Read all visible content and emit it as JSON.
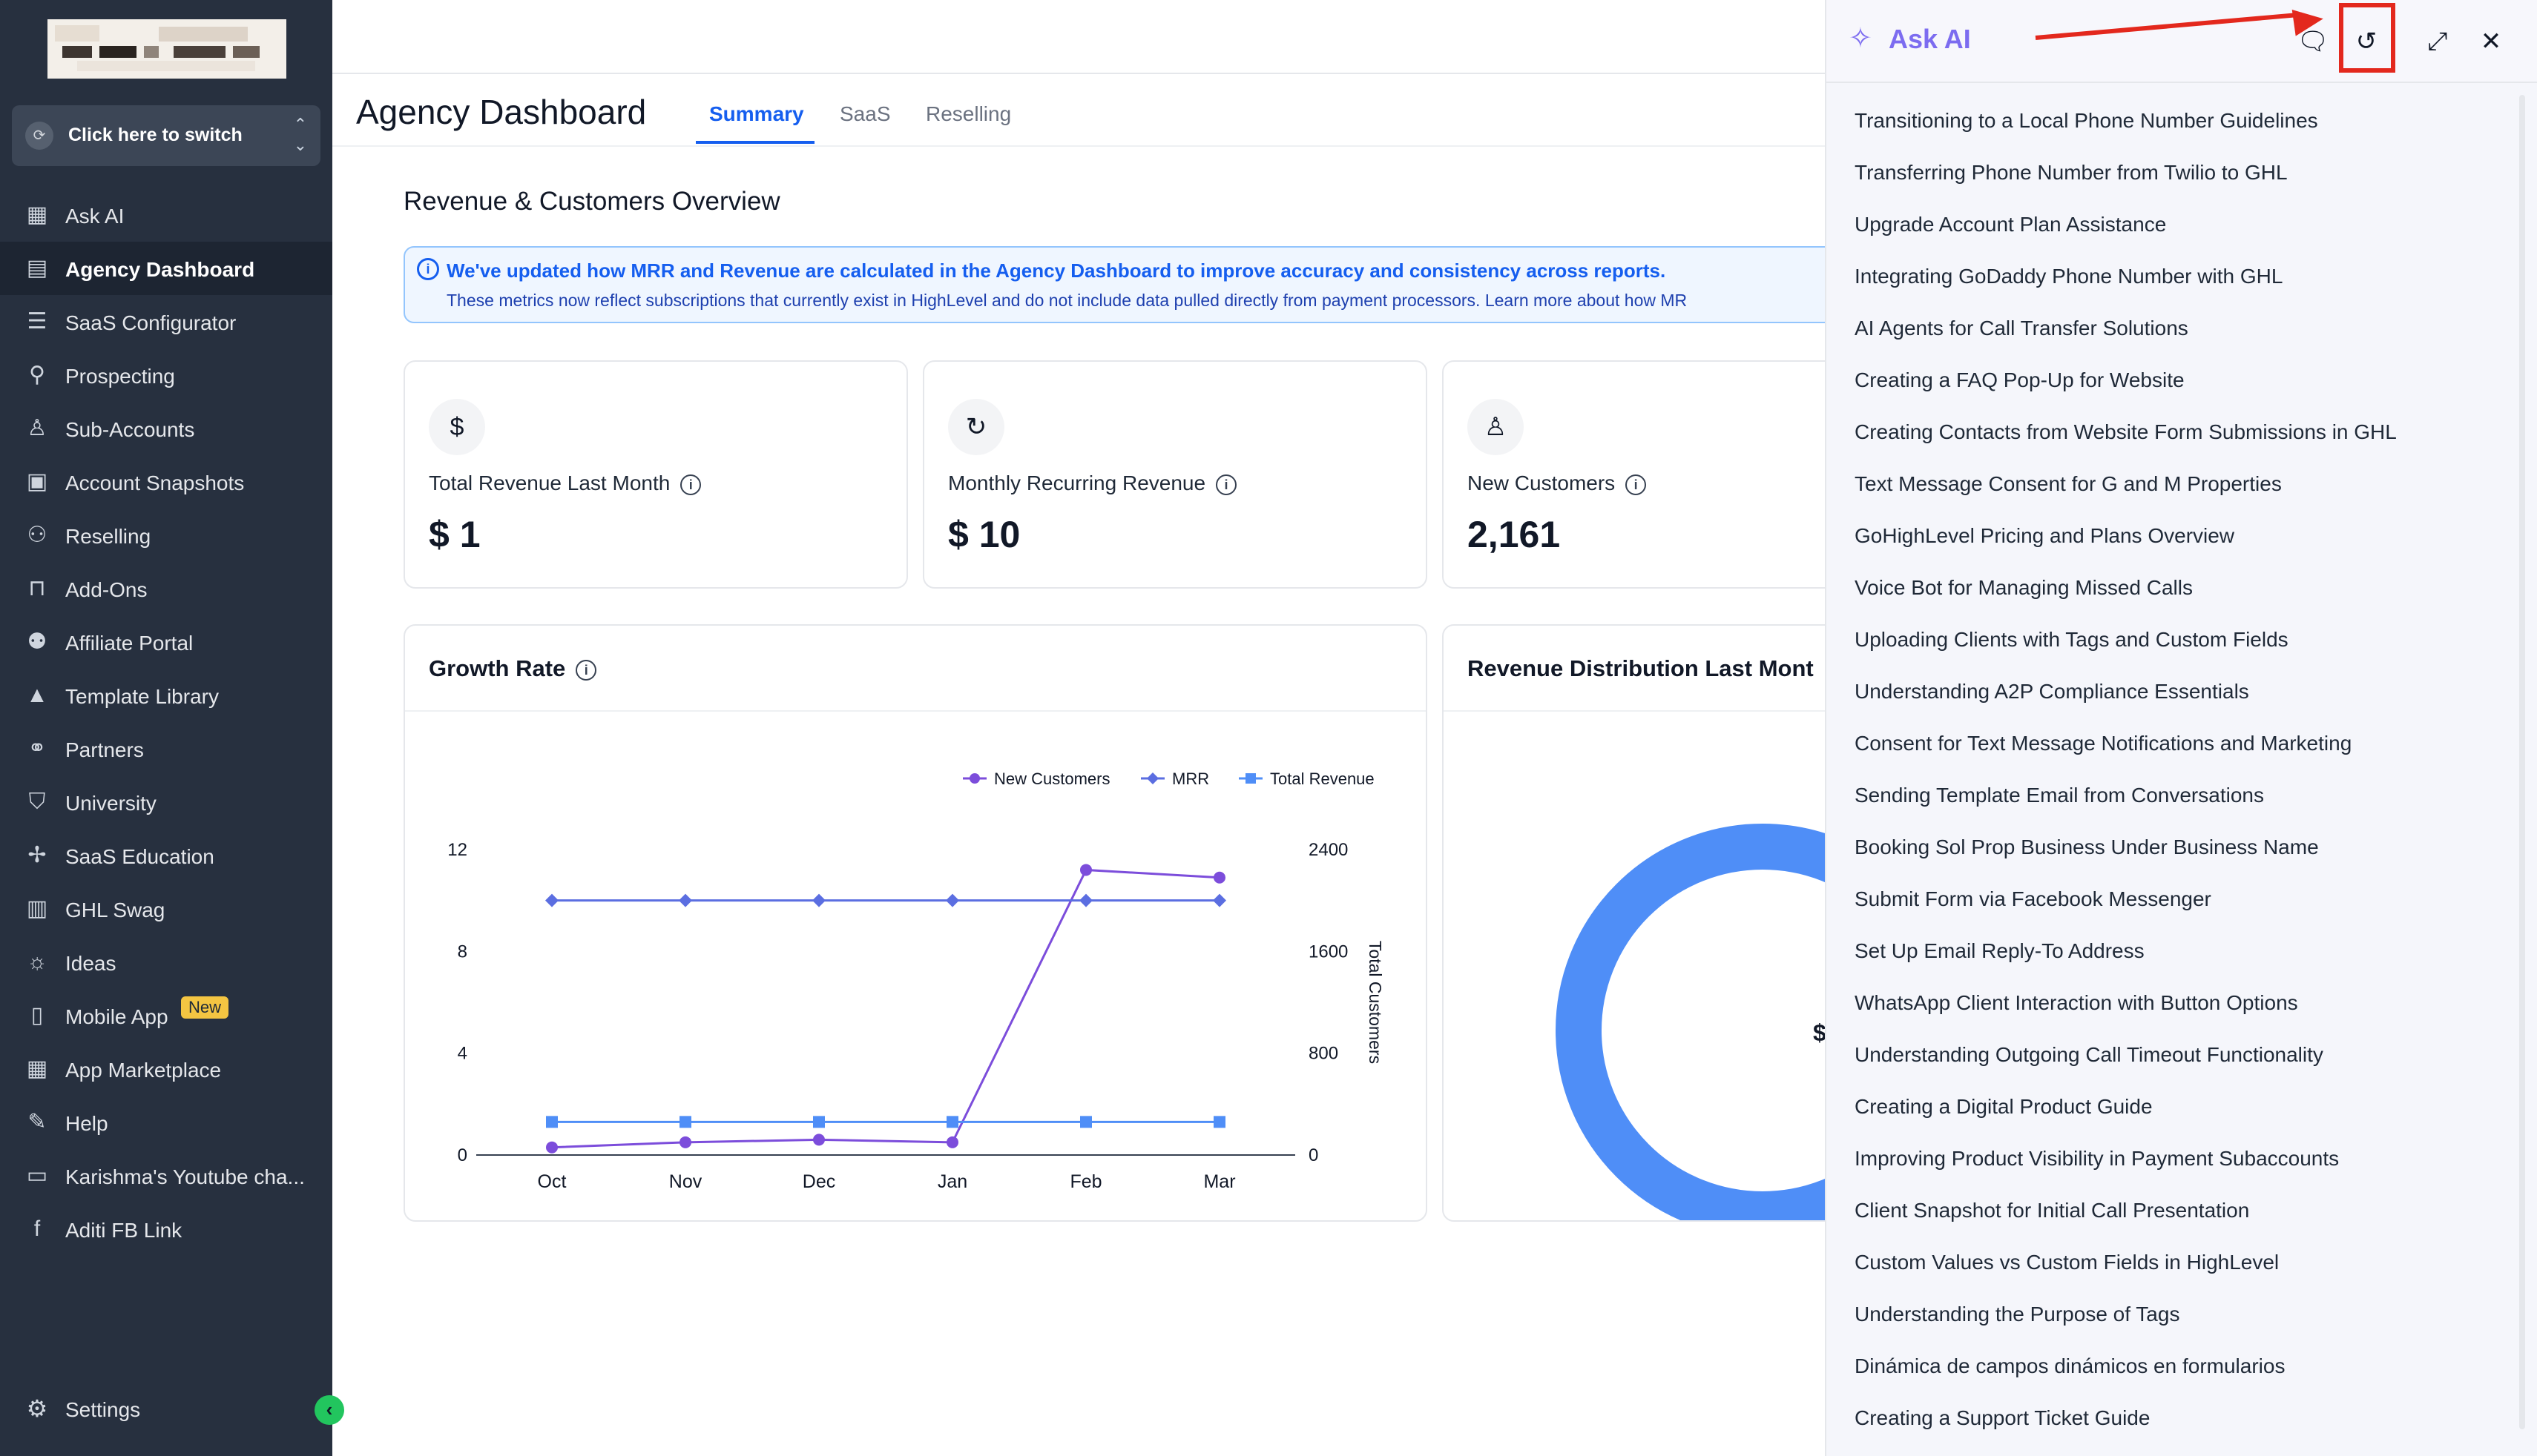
{
  "sidebar": {
    "switcher_label": "Click here to switch",
    "items": [
      {
        "label": "Ask AI",
        "icon": "grid-icon",
        "glyph": "▦"
      },
      {
        "label": "Agency Dashboard",
        "icon": "dashboard-icon",
        "glyph": "▤",
        "active": true
      },
      {
        "label": "SaaS Configurator",
        "icon": "bars-icon",
        "glyph": "☰"
      },
      {
        "label": "Prospecting",
        "icon": "user-search-icon",
        "glyph": "⚲"
      },
      {
        "label": "Sub-Accounts",
        "icon": "user-icon",
        "glyph": "♙"
      },
      {
        "label": "Account Snapshots",
        "icon": "snapshot-icon",
        "glyph": "▣"
      },
      {
        "label": "Reselling",
        "icon": "network-icon",
        "glyph": "⚇"
      },
      {
        "label": "Add-Ons",
        "icon": "bag-icon",
        "glyph": "⊓"
      },
      {
        "label": "Affiliate Portal",
        "icon": "users-icon",
        "glyph": "⚉"
      },
      {
        "label": "Template Library",
        "icon": "shapes-icon",
        "glyph": "▲"
      },
      {
        "label": "Partners",
        "icon": "handshake-icon",
        "glyph": "⚭"
      },
      {
        "label": "University",
        "icon": "graduation-icon",
        "glyph": "⛉"
      },
      {
        "label": "SaaS Education",
        "icon": "puzzle-icon",
        "glyph": "✢"
      },
      {
        "label": "GHL Swag",
        "icon": "store-icon",
        "glyph": "▥"
      },
      {
        "label": "Ideas",
        "icon": "bulb-icon",
        "glyph": "☼"
      },
      {
        "label": "Mobile App",
        "icon": "mobile-icon",
        "glyph": "▯",
        "badge": "New"
      },
      {
        "label": "App Marketplace",
        "icon": "apps-icon",
        "glyph": "▦"
      },
      {
        "label": "Help",
        "icon": "wrench-icon",
        "glyph": "✎"
      },
      {
        "label": "Karishma's Youtube cha...",
        "icon": "link-box-icon",
        "glyph": "▭"
      },
      {
        "label": "Aditi FB Link",
        "icon": "facebook-icon",
        "glyph": "f"
      }
    ],
    "settings_label": "Settings",
    "collapse_glyph": "‹"
  },
  "main": {
    "page_title": "Agency Dashboard",
    "tabs": [
      {
        "label": "Summary",
        "active": true
      },
      {
        "label": "SaaS"
      },
      {
        "label": "Reselling"
      }
    ],
    "section_title": "Revenue & Customers Overview",
    "notice": {
      "line1": "We've updated how MRR and Revenue are calculated in the Agency Dashboard to improve accuracy and consistency across reports.",
      "line2": "These metrics now reflect subscriptions that currently exist in HighLevel and do not include data pulled directly from payment processors. Learn more about how MR"
    },
    "stats": [
      {
        "label": "Total Revenue Last Month",
        "value": "$ 1",
        "icon": "dollar-icon",
        "glyph": "$"
      },
      {
        "label": "Monthly Recurring Revenue",
        "value": "$ 10",
        "icon": "refresh-icon",
        "glyph": "↻"
      },
      {
        "label": "New Customers",
        "value": "2,161",
        "icon": "user-plus-icon",
        "glyph": "♙"
      }
    ],
    "growth_title": "Growth Rate",
    "distribution_title": "Revenue Distribution Last Mont",
    "donut_center_text": "$"
  },
  "chart_data": {
    "type": "line",
    "title": "Growth Rate",
    "categories": [
      "Oct",
      "Nov",
      "Dec",
      "Jan",
      "Feb",
      "Mar"
    ],
    "y_left": {
      "ticks": [
        "0",
        "4",
        "8",
        "12"
      ],
      "range": [
        0,
        12
      ]
    },
    "y_right": {
      "ticks": [
        "0",
        "800",
        "1600",
        "2400"
      ],
      "range": [
        0,
        2400
      ],
      "label": "Total Customers"
    },
    "legend_position": "top-right",
    "series": [
      {
        "name": "New Customers",
        "color": "#7c4ddb",
        "marker": "circle",
        "axis": "left",
        "values": [
          0.3,
          0.5,
          0.6,
          0.5,
          11.2,
          10.9
        ]
      },
      {
        "name": "MRR",
        "color": "#5b6ee1",
        "marker": "diamond",
        "axis": "left",
        "values": [
          10,
          10,
          10,
          10,
          10,
          10
        ]
      },
      {
        "name": "Total Revenue",
        "color": "#4f8ef7",
        "marker": "square",
        "axis": "left",
        "values": [
          1.3,
          1.3,
          1.3,
          1.3,
          1.3,
          1.3
        ]
      }
    ]
  },
  "ai": {
    "title": "Ask AI",
    "history": [
      "Transitioning to a Local Phone Number Guidelines",
      "Transferring Phone Number from Twilio to GHL",
      "Upgrade Account Plan Assistance",
      "Integrating GoDaddy Phone Number with GHL",
      "AI Agents for Call Transfer Solutions",
      "Creating a FAQ Pop-Up for Website",
      "Creating Contacts from Website Form Submissions in GHL",
      "Text Message Consent for G and M Properties",
      "GoHighLevel Pricing and Plans Overview",
      "Voice Bot for Managing Missed Calls",
      "Uploading Clients with Tags and Custom Fields",
      "Understanding A2P Compliance Essentials",
      "Consent for Text Message Notifications and Marketing",
      "Sending Template Email from Conversations",
      "Booking Sol Prop Business Under Business Name",
      "Submit Form via Facebook Messenger",
      "Set Up Email Reply-To Address",
      "WhatsApp Client Interaction with Button Options",
      "Understanding Outgoing Call Timeout Functionality",
      "Creating a Digital Product Guide",
      "Improving Product Visibility in Payment Subaccounts",
      "Client Snapshot for Initial Call Presentation",
      "Custom Values vs Custom Fields in HighLevel",
      "Understanding the Purpose of Tags",
      "Dinámica de campos dinámicos en formularios",
      "Creating a Support Ticket Guide"
    ]
  },
  "colors": {
    "sidebar_bg": "#27303f",
    "accent": "#155eef",
    "ai_accent": "#7c6cf0",
    "annotation_red": "#e3281d",
    "donut_blue": "#4f8ef7"
  }
}
